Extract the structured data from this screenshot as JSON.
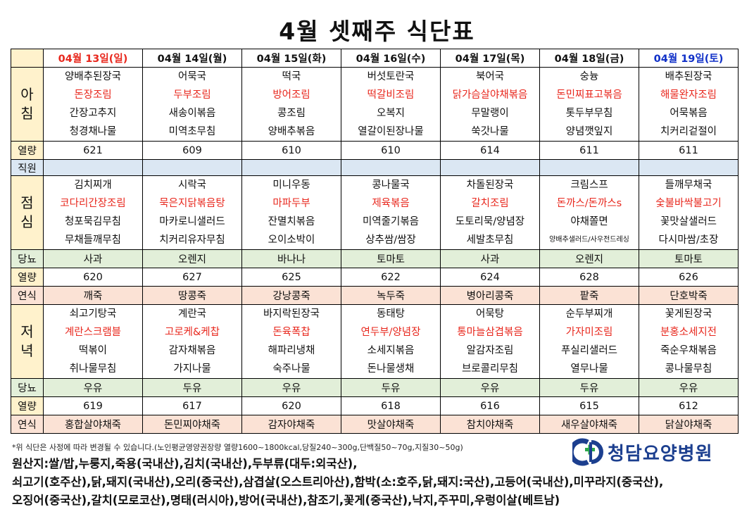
{
  "title": "4월 셋째주 식단표",
  "days": [
    "04월 13일(일)",
    "04월 14일(월)",
    "04월 15일(화)",
    "04월 16일(수)",
    "04월 17일(목)",
    "04월 18일(금)",
    "04월 19일(토)"
  ],
  "labels": {
    "breakfast": "아\n침",
    "calories": "열량",
    "staff": "직원",
    "lunch": "점\n심",
    "diabetic": "당뇨",
    "snack": "연식",
    "dinner": "저\n녁"
  },
  "breakfast": [
    [
      "양배추된장국",
      "돈장조림",
      "간장고추지",
      "청경채나물"
    ],
    [
      "어묵국",
      "두부조림",
      "새송이볶음",
      "미역초무침"
    ],
    [
      "떡국",
      "방어조림",
      "콩조림",
      "양배추볶음"
    ],
    [
      "버섯토란국",
      "떡갈비조림",
      "오복지",
      "열갈이된장나물"
    ],
    [
      "북어국",
      "닭가슴살야채볶음",
      "무말랭이",
      "쑥갓나물"
    ],
    [
      "숭늉",
      "돈민찌표고볶음",
      "톳두부무침",
      "양념깻잎지"
    ],
    [
      "배추된장국",
      "해물완자조림",
      "어묵볶음",
      "치커리겉절이"
    ]
  ],
  "breakfast_cal": [
    "621",
    "609",
    "610",
    "610",
    "614",
    "611",
    "611"
  ],
  "lunch": [
    [
      "김치찌개",
      "코다리간장조림",
      "청포묵김무침",
      "무채들깨무침"
    ],
    [
      "시락국",
      "묵은지닭볶음탕",
      "마카로니샐러드",
      "치커리유자무침"
    ],
    [
      "미니우동",
      "마파두부",
      "잔멸치볶음",
      "오이소박이"
    ],
    [
      "콩나물국",
      "제육볶음",
      "미역줄기볶음",
      "상추쌈/쌈장"
    ],
    [
      "차돌된장국",
      "갈치조림",
      "도토리묵/양념장",
      "세발초무침"
    ],
    [
      "크림스프",
      "돈까스/돈까스s",
      "야채쫄면",
      "양배추샐러드/사우전드레싱"
    ],
    [
      "들깨무채국",
      "숯불바싹불고기",
      "꽃맛살샐러드",
      "다시마쌈/초장"
    ]
  ],
  "lunch_diabetic": [
    "사과",
    "오렌지",
    "바나나",
    "토마토",
    "사과",
    "오렌지",
    "토마토"
  ],
  "lunch_cal": [
    "620",
    "627",
    "625",
    "622",
    "624",
    "628",
    "626"
  ],
  "lunch_snack": [
    "깨죽",
    "땅콩죽",
    "강낭콩죽",
    "녹두죽",
    "병아리콩죽",
    "팥죽",
    "단호박죽"
  ],
  "dinner": [
    [
      "쇠고기탕국",
      "계란스크램블",
      "떡볶이",
      "취나물무침"
    ],
    [
      "계란국",
      "고로케&케찹",
      "감자채볶음",
      "가지나물"
    ],
    [
      "바지락된장국",
      "돈육폭찹",
      "해파리냉채",
      "숙주나물"
    ],
    [
      "동태탕",
      "연두부/양념장",
      "소세지볶음",
      "돈나물생채"
    ],
    [
      "어묵탕",
      "통마늘삼겹볶음",
      "알감자조림",
      "브로콜리무침"
    ],
    [
      "순두부찌개",
      "가자미조림",
      "푸실리샐러드",
      "열무나물"
    ],
    [
      "꽃게된장국",
      "분홍소세지전",
      "죽순우채볶음",
      "콩나물무침"
    ]
  ],
  "dinner_diabetic": [
    "우유",
    "두유",
    "우유",
    "두유",
    "우유",
    "두유",
    "우유"
  ],
  "dinner_cal": [
    "619",
    "617",
    "620",
    "618",
    "616",
    "615",
    "612"
  ],
  "dinner_snack": [
    "홍합살야채죽",
    "돈민찌야채죽",
    "감자야채죽",
    "맛살야채죽",
    "참치야채죽",
    "새우살야채죽",
    "닭살야채죽"
  ],
  "note": "*위 식단은 사정에 따라 변경될 수 있습니다.(노인평균영양권장량 열량1600~1800kcal,당질240~300g,단백질50~70g,지질30~50g)",
  "hospital_name": "청담요양병원",
  "origin_lines": [
    "원산지:쌀/밥,누룽지,죽용(국내산),김치(국내산),두부류(대두:외국산),",
    "쇠고기(호주산),닭,돼지(국내산),오리(중국산),삼겹살(오스트리아산),함박(소:호주,닭,돼지:국산),고등어(국내산),미꾸라지(중국산),",
    "오징어(중국산),갈치(모로코산),명태(러시아),방어(국내산),참조기,꽃게(중국산),낙지,주꾸미,우렁이살(베트남)"
  ],
  "colors": {
    "header_bg": "#fff2cc",
    "staff_bg": "#dbe7f3",
    "diabetic_bg": "#e2efd9",
    "snack_bg": "#fbe2d5",
    "highlight_red": "#e8281e",
    "sunday_red": "#e8281e",
    "saturday_blue": "#1030c8",
    "logo_blue": "#1c3f8f",
    "logo_green": "#2aa84a"
  }
}
